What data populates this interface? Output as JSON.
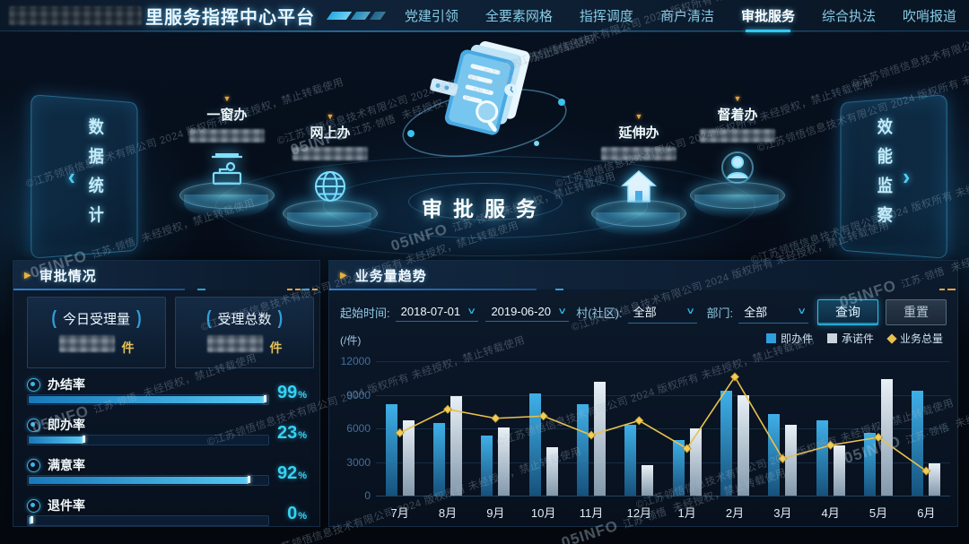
{
  "header": {
    "title_suffix": "里服务指挥中心平台",
    "nav_items": [
      {
        "label": "党建引领",
        "active": false
      },
      {
        "label": "全要素网格",
        "active": false
      },
      {
        "label": "指挥调度",
        "active": false
      },
      {
        "label": "商户清洁",
        "active": false
      },
      {
        "label": "审批服务",
        "active": true
      },
      {
        "label": "综合执法",
        "active": false
      },
      {
        "label": "吹哨报道",
        "active": false
      }
    ]
  },
  "stage": {
    "center_title": "审批服务",
    "side_left_label": "数据统计",
    "side_right_label": "效能监察",
    "services": [
      {
        "label": "一窗办",
        "icon": "counter-icon"
      },
      {
        "label": "网上办",
        "icon": "globe-icon"
      },
      {
        "label": "延伸办",
        "icon": "house-icon"
      },
      {
        "label": "督着办",
        "icon": "person-icon"
      }
    ]
  },
  "approval_panel": {
    "title": "审批情况",
    "stats": [
      {
        "label": "今日受理量",
        "unit": "件"
      },
      {
        "label": "受理总数",
        "unit": "件"
      }
    ],
    "metrics": [
      {
        "label": "办结率",
        "value": 99
      },
      {
        "label": "即办率",
        "value": 23
      },
      {
        "label": "满意率",
        "value": 92
      },
      {
        "label": "退件率",
        "value": 0
      }
    ]
  },
  "trend_panel": {
    "title": "业务量趋势",
    "filters": {
      "start_label": "起始时间:",
      "start_date": "2018-07-01",
      "end_date": "2019-06-20",
      "village_label": "村(社区):",
      "village_value": "全部",
      "dept_label": "部门:",
      "dept_value": "全部",
      "query_btn": "查询",
      "reset_btn": "重置"
    },
    "unit_label": "(/件)"
  },
  "chart_data": {
    "type": "bar",
    "categories": [
      "7月",
      "8月",
      "9月",
      "10月",
      "11月",
      "12月",
      "1月",
      "2月",
      "3月",
      "4月",
      "5月",
      "6月"
    ],
    "series": [
      {
        "name": "即办件",
        "type": "bar",
        "color": "#2f9fdd",
        "values": [
          8200,
          6500,
          5400,
          9100,
          8200,
          6300,
          5000,
          9400,
          7300,
          6700,
          5600,
          9400
        ]
      },
      {
        "name": "承诺件",
        "type": "bar",
        "color": "#c9d4de",
        "values": [
          6700,
          8900,
          6100,
          4300,
          10200,
          2700,
          6000,
          9000,
          6300,
          4500,
          10400,
          2900
        ]
      },
      {
        "name": "业务总量",
        "type": "line",
        "color": "#e9c14b",
        "values": [
          5600,
          7700,
          6900,
          7100,
          5400,
          6700,
          4200,
          10600,
          3300,
          4500,
          5200,
          2200
        ]
      }
    ],
    "title": "业务量趋势",
    "xlabel": "",
    "ylabel": "(/件)",
    "ylim": [
      0,
      12000
    ],
    "yticks": [
      0,
      3000,
      6000,
      9000,
      12000
    ],
    "legend_position": "top-right",
    "grid": true
  },
  "watermark": {
    "brand": "05INFO",
    "sub": "江苏·领悟",
    "note": "未经授权，禁止转载使用",
    "copyright": "©江苏领悟信息技术有限公司 2024 版权所有"
  },
  "colors": {
    "accent": "#35c8ef",
    "nav_active_underline": "#35c8ef",
    "header_arrow": "#e8b33d",
    "stat_unit_yellow": "#e8c455",
    "metric_value_cyan": "#35d3f5",
    "bar_blue": "#2f9fdd",
    "bar_gray": "#c9d4de",
    "line_yellow": "#e9c14b"
  }
}
